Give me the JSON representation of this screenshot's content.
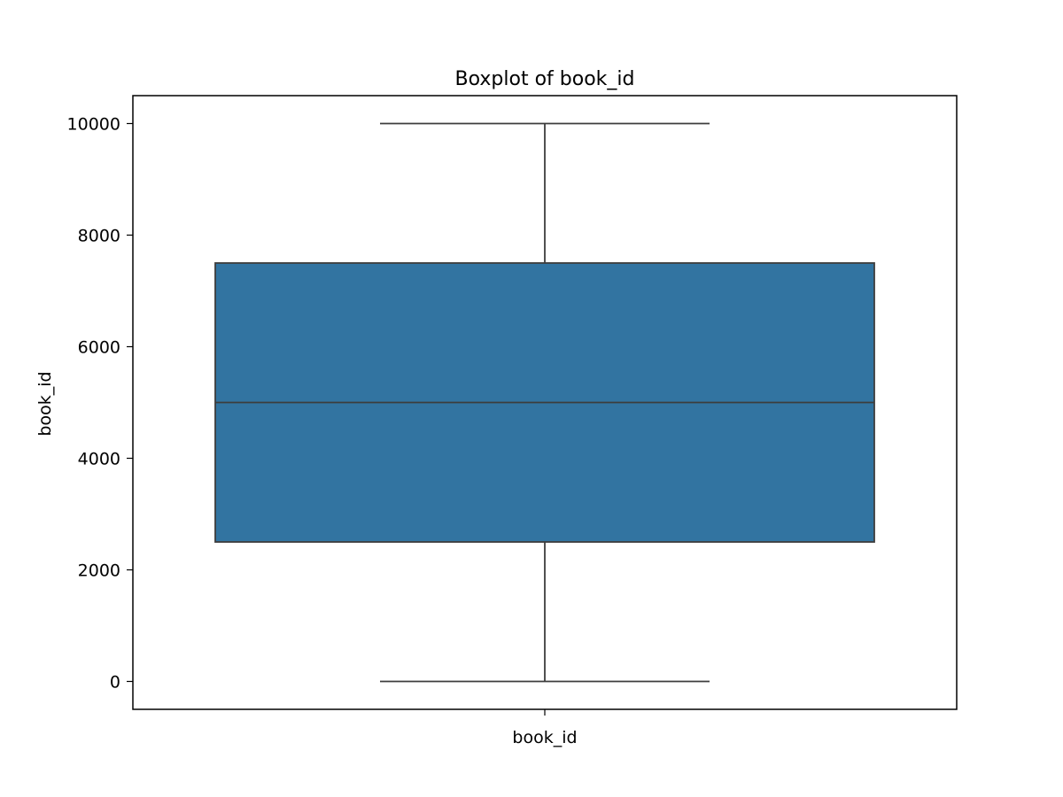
{
  "chart_data": {
    "type": "box",
    "title": "Boxplot of book_id",
    "xlabel": "book_id",
    "ylabel": "book_id",
    "categories": [
      "book_id"
    ],
    "ylim": [
      -500,
      10500
    ],
    "yticks": [
      0,
      2000,
      4000,
      6000,
      8000,
      10000
    ],
    "ytick_labels": [
      "0",
      "2000",
      "4000",
      "6000",
      "8000",
      "10000"
    ],
    "boxes": [
      {
        "category": "book_id",
        "min": 0,
        "q1": 2500,
        "median": 5000,
        "q3": 7500,
        "max": 10000
      }
    ],
    "grid": false,
    "box_color": "#3274a1",
    "line_color": "#3d3d3d"
  }
}
